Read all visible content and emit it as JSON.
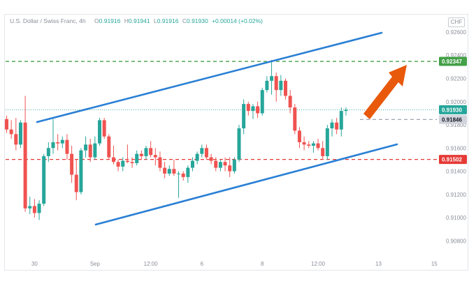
{
  "header": {
    "symbol": "U.S. Dollar / Swiss Franc, 4h",
    "o_label": "O",
    "o": "0.91916",
    "h_label": "H",
    "h": "0.91941",
    "l_label": "L",
    "l": "0.91916",
    "c_label": "C",
    "c": "0.91930",
    "change": "+0.00014 (+0.02%)"
  },
  "currency_button": "CHF",
  "colors": {
    "up": "#26a69a",
    "down": "#ef5350",
    "channel": "#2a7fd4",
    "resistance": "#43a047",
    "support": "#e53935",
    "arrow": "#e8590c"
  },
  "chart_data": {
    "type": "candlestick",
    "title": "U.S. Dollar / Swiss Franc, 4h",
    "ylim": [
      0.907,
      0.9266
    ],
    "y_ticks": [
      "0.92600",
      "0.92400",
      "0.92200",
      "0.92000",
      "0.91800",
      "0.91600",
      "0.91400",
      "0.91200",
      "0.91000",
      "0.90800"
    ],
    "y_tick_values": [
      0.926,
      0.924,
      0.922,
      0.92,
      0.918,
      0.916,
      0.914,
      0.912,
      0.91,
      0.908
    ],
    "x_ticks": [
      "30",
      "Sep",
      "12:00",
      "6",
      "8",
      "12:00",
      "13",
      "15"
    ],
    "x_tick_index": [
      6,
      19,
      31,
      42,
      55,
      67,
      80,
      92
    ],
    "price_tags": [
      {
        "label": "0.92347",
        "value": 0.92347,
        "color": "#43a047",
        "text_color": "#ffffff"
      },
      {
        "label": "0.91930",
        "value": 0.9193,
        "color": "#26a69a",
        "text_color": "#ffffff"
      },
      {
        "label": "0.91846",
        "value": 0.91846,
        "color": "#d1d4dc",
        "text_color": "#131722"
      },
      {
        "label": "0.91502",
        "value": 0.91502,
        "color": "#e53935",
        "text_color": "#ffffff"
      }
    ],
    "candles": [
      [
        0.9185,
        0.9188,
        0.9173,
        0.9176
      ],
      [
        0.9176,
        0.9184,
        0.9168,
        0.9172
      ],
      [
        0.9172,
        0.9186,
        0.9158,
        0.9163
      ],
      [
        0.9163,
        0.9184,
        0.916,
        0.9182
      ],
      [
        0.9182,
        0.9205,
        0.9105,
        0.9108
      ],
      [
        0.9108,
        0.9118,
        0.9103,
        0.911
      ],
      [
        0.911,
        0.9116,
        0.91,
        0.9104
      ],
      [
        0.9104,
        0.9115,
        0.9098,
        0.9112
      ],
      [
        0.9112,
        0.9155,
        0.911,
        0.9153
      ],
      [
        0.9153,
        0.9165,
        0.9148,
        0.916
      ],
      [
        0.916,
        0.9185,
        0.9155,
        0.9165
      ],
      [
        0.9165,
        0.9172,
        0.9158,
        0.9164
      ],
      [
        0.9164,
        0.917,
        0.916,
        0.9167
      ],
      [
        0.9167,
        0.9172,
        0.915,
        0.9155
      ],
      [
        0.9155,
        0.9162,
        0.913,
        0.9137
      ],
      [
        0.9137,
        0.915,
        0.9115,
        0.9122
      ],
      [
        0.9122,
        0.916,
        0.912,
        0.9158
      ],
      [
        0.9158,
        0.917,
        0.9152,
        0.9163
      ],
      [
        0.9163,
        0.9168,
        0.9148,
        0.9152
      ],
      [
        0.9152,
        0.917,
        0.915,
        0.9164
      ],
      [
        0.9164,
        0.9186,
        0.9162,
        0.9184
      ],
      [
        0.9184,
        0.9186,
        0.9168,
        0.917
      ],
      [
        0.917,
        0.9172,
        0.915,
        0.9152
      ],
      [
        0.9152,
        0.9162,
        0.9146,
        0.9148
      ],
      [
        0.9148,
        0.915,
        0.914,
        0.9144
      ],
      [
        0.9144,
        0.9152,
        0.914,
        0.9149
      ],
      [
        0.9149,
        0.9163,
        0.9147,
        0.9148
      ],
      [
        0.9148,
        0.9152,
        0.9143,
        0.9147
      ],
      [
        0.9147,
        0.9158,
        0.9145,
        0.9155
      ],
      [
        0.9155,
        0.9158,
        0.915,
        0.9153
      ],
      [
        0.9153,
        0.9162,
        0.915,
        0.916
      ],
      [
        0.916,
        0.9166,
        0.9152,
        0.9154
      ],
      [
        0.9154,
        0.916,
        0.9145,
        0.9152
      ],
      [
        0.9152,
        0.9157,
        0.914,
        0.9143
      ],
      [
        0.9143,
        0.9148,
        0.9134,
        0.9138
      ],
      [
        0.9138,
        0.9145,
        0.9136,
        0.9142
      ],
      [
        0.9142,
        0.915,
        0.9136,
        0.9138
      ],
      [
        0.9138,
        0.914,
        0.9117,
        0.9138
      ],
      [
        0.9138,
        0.914,
        0.9132,
        0.9135
      ],
      [
        0.9135,
        0.9145,
        0.913,
        0.9143
      ],
      [
        0.9143,
        0.9152,
        0.914,
        0.9149
      ],
      [
        0.9149,
        0.9157,
        0.9146,
        0.9155
      ],
      [
        0.9155,
        0.9163,
        0.9152,
        0.916
      ],
      [
        0.916,
        0.9163,
        0.915,
        0.9152
      ],
      [
        0.9152,
        0.9155,
        0.9146,
        0.9149
      ],
      [
        0.9149,
        0.9152,
        0.914,
        0.9143
      ],
      [
        0.9143,
        0.915,
        0.914,
        0.9148
      ],
      [
        0.9148,
        0.9152,
        0.914,
        0.9145
      ],
      [
        0.9145,
        0.9152,
        0.9135,
        0.914
      ],
      [
        0.914,
        0.9152,
        0.9138,
        0.915
      ],
      [
        0.915,
        0.918,
        0.9148,
        0.9177
      ],
      [
        0.9177,
        0.9202,
        0.9172,
        0.9198
      ],
      [
        0.9198,
        0.92,
        0.9188,
        0.9192
      ],
      [
        0.9192,
        0.9198,
        0.9185,
        0.9196
      ],
      [
        0.9196,
        0.92,
        0.9186,
        0.919
      ],
      [
        0.919,
        0.9212,
        0.9188,
        0.921
      ],
      [
        0.921,
        0.9222,
        0.9208,
        0.9218
      ],
      [
        0.9218,
        0.9236,
        0.9206,
        0.9222
      ],
      [
        0.9222,
        0.9225,
        0.92,
        0.921
      ],
      [
        0.921,
        0.9223,
        0.9205,
        0.9218
      ],
      [
        0.9218,
        0.922,
        0.9202,
        0.9205
      ],
      [
        0.9205,
        0.921,
        0.919,
        0.9195
      ],
      [
        0.9195,
        0.9198,
        0.9172,
        0.9175
      ],
      [
        0.9175,
        0.9178,
        0.916,
        0.9165
      ],
      [
        0.9165,
        0.917,
        0.9158,
        0.9163
      ],
      [
        0.9163,
        0.9166,
        0.916,
        0.9162
      ],
      [
        0.9162,
        0.9166,
        0.9156,
        0.9164
      ],
      [
        0.9164,
        0.9168,
        0.9158,
        0.916
      ],
      [
        0.916,
        0.9166,
        0.915,
        0.9153
      ],
      [
        0.9153,
        0.918,
        0.915,
        0.9177
      ],
      [
        0.9177,
        0.9185,
        0.917,
        0.9182
      ],
      [
        0.9182,
        0.9186,
        0.9172,
        0.9176
      ],
      [
        0.9176,
        0.9195,
        0.917,
        0.9192
      ],
      [
        0.9192,
        0.9195,
        0.9188,
        0.9193
      ]
    ]
  }
}
